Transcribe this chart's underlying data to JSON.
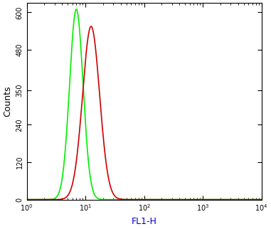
{
  "green_peak_x": 7.0,
  "green_peak_y": 610,
  "green_sigma": 0.115,
  "red_peak_x": 12.5,
  "red_peak_y": 555,
  "red_sigma": 0.145,
  "green_color": "#00ee00",
  "red_color": "#cc0000",
  "xlabel": "FL1-H",
  "ylabel": "Counts",
  "yticks": [
    0,
    120,
    240,
    350,
    480,
    600
  ],
  "xlim_log": [
    1,
    10000
  ],
  "ylim": [
    0,
    630
  ],
  "background_color": "#ffffff",
  "linewidth": 1.2,
  "xlabel_color": "#0000cc",
  "tick_labelsize": 7,
  "ylabel_fontsize": 9,
  "xlabel_fontsize": 9
}
